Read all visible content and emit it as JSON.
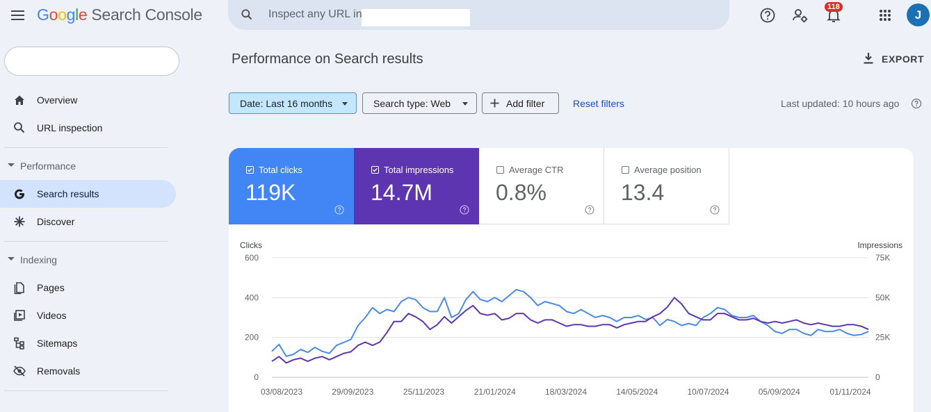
{
  "app": {
    "logo_letters": [
      "G",
      "o",
      "o",
      "g",
      "l",
      "e"
    ],
    "product": "Search Console",
    "search_placeholder": "Inspect any URL in",
    "notification_count": "118",
    "avatar_letter": "J"
  },
  "sidebar": {
    "items": [
      {
        "label": "Overview",
        "icon": "home-icon"
      },
      {
        "label": "URL inspection",
        "icon": "search-icon"
      }
    ],
    "sections": [
      {
        "title": "Performance",
        "items": [
          {
            "label": "Search results",
            "icon": "google-g-icon",
            "active": true
          },
          {
            "label": "Discover",
            "icon": "asterisk-icon"
          }
        ]
      },
      {
        "title": "Indexing",
        "items": [
          {
            "label": "Pages",
            "icon": "pages-icon"
          },
          {
            "label": "Videos",
            "icon": "video-icon"
          },
          {
            "label": "Sitemaps",
            "icon": "sitemap-icon"
          },
          {
            "label": "Removals",
            "icon": "eye-off-icon"
          }
        ]
      }
    ]
  },
  "main": {
    "title": "Performance on Search results",
    "export_label": "EXPORT",
    "filters": {
      "date": "Date: Last 16 months",
      "search_type": "Search type: Web",
      "add_filter": "Add filter",
      "reset": "Reset filters"
    },
    "last_updated": "Last updated: 10 hours ago",
    "metrics": [
      {
        "label": "Total clicks",
        "value": "119K",
        "checked": true,
        "color": "#4285f4"
      },
      {
        "label": "Total impressions",
        "value": "14.7M",
        "checked": true,
        "color": "#5e35b1"
      },
      {
        "label": "Average CTR",
        "value": "0.8%",
        "checked": false
      },
      {
        "label": "Average position",
        "value": "13.4",
        "checked": false
      }
    ]
  },
  "chart_data": {
    "type": "line",
    "left_axis_label": "Clicks",
    "right_axis_label": "Impressions",
    "left_ticks": [
      "0",
      "200",
      "400",
      "600"
    ],
    "right_ticks": [
      "0",
      "25K",
      "50K",
      "75K"
    ],
    "left_range": [
      0,
      600
    ],
    "right_range": [
      0,
      75000
    ],
    "x_ticks": [
      "03/08/2023",
      "29/09/2023",
      "25/11/2023",
      "21/01/2024",
      "18/03/2024",
      "14/05/2024",
      "10/07/2024",
      "05/09/2024",
      "01/11/2024"
    ],
    "grid": true,
    "series": [
      {
        "name": "Clicks",
        "axis": "left",
        "color": "#4a8ae8",
        "values": [
          130,
          165,
          105,
          115,
          140,
          125,
          150,
          130,
          120,
          160,
          175,
          190,
          260,
          300,
          350,
          320,
          340,
          330,
          380,
          400,
          390,
          350,
          330,
          330,
          400,
          300,
          320,
          390,
          430,
          390,
          380,
          400,
          380,
          410,
          440,
          430,
          400,
          360,
          380,
          370,
          360,
          330,
          320,
          340,
          320,
          300,
          310,
          300,
          280,
          300,
          300,
          310,
          290,
          300,
          260,
          290,
          280,
          260,
          270,
          260,
          300,
          320,
          350,
          340,
          310,
          300,
          300,
          310,
          280,
          260,
          230,
          220,
          240,
          240,
          220,
          210,
          240,
          230,
          230,
          240,
          220,
          210,
          215,
          230
        ]
      },
      {
        "name": "Impressions",
        "axis": "right",
        "color": "#5e35b1",
        "values": [
          10000,
          13000,
          9000,
          11000,
          12000,
          10000,
          12000,
          13000,
          11000,
          13000,
          15000,
          16000,
          20000,
          22000,
          20000,
          22000,
          28000,
          35000,
          35000,
          40000,
          38000,
          35000,
          30000,
          33000,
          38000,
          34000,
          38000,
          42000,
          45000,
          40000,
          39000,
          40000,
          36000,
          37000,
          40000,
          40000,
          36000,
          34000,
          36000,
          36000,
          34000,
          32000,
          33000,
          33000,
          32000,
          32000,
          33000,
          33000,
          31000,
          33000,
          34000,
          35000,
          35000,
          38000,
          40000,
          44000,
          50000,
          46000,
          40000,
          38000,
          36000,
          36000,
          40000,
          40000,
          38000,
          36000,
          36000,
          37000,
          35000,
          34000,
          35000,
          34000,
          35000,
          36000,
          34000,
          33000,
          34000,
          33000,
          32000,
          32000,
          33000,
          33000,
          32000,
          30000
        ]
      }
    ]
  }
}
